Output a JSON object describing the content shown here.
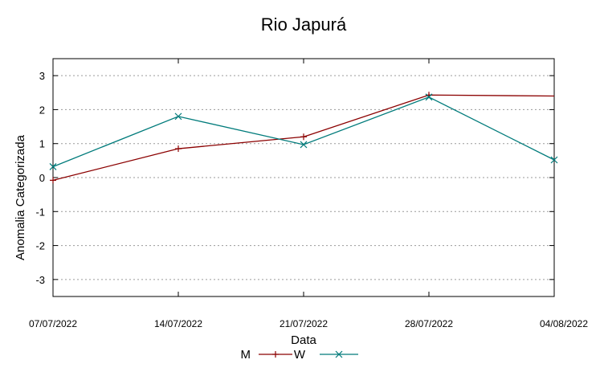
{
  "chart_data": {
    "type": "line",
    "title": "Rio Japurá",
    "xlabel": "Data",
    "ylabel": "Anomalia Categorizada",
    "x_ticks": [
      "07/07/2022",
      "14/07/2022",
      "21/07/2022",
      "28/07/2022",
      "04/08/2022"
    ],
    "x_range": [
      "07/07/2022",
      "04/08/2022"
    ],
    "ylim": [
      -3.5,
      3.5
    ],
    "y_ticks": [
      -3,
      -2,
      -1,
      0,
      1,
      2,
      3
    ],
    "grid": "horizontal-dotted",
    "legend_position": "bottom-center",
    "series": [
      {
        "name": "M",
        "color": "#8b0000",
        "marker": "plus",
        "points": [
          {
            "x": "07/07/2022",
            "y": -0.08
          },
          {
            "x": "14/07/2022",
            "y": 0.85
          },
          {
            "x": "21/07/2022",
            "y": 1.2
          },
          {
            "x": "28/07/2022",
            "y": 2.43
          },
          {
            "x": "04/08/2022",
            "y": 2.4
          }
        ],
        "marked_points": [
          "07/07/2022",
          "14/07/2022",
          "21/07/2022",
          "28/07/2022"
        ]
      },
      {
        "name": "W",
        "color": "#007b7b",
        "marker": "x",
        "points": [
          {
            "x": "07/07/2022",
            "y": 0.32
          },
          {
            "x": "14/07/2022",
            "y": 1.8
          },
          {
            "x": "21/07/2022",
            "y": 0.97
          },
          {
            "x": "28/07/2022",
            "y": 2.37
          },
          {
            "x": "04/08/2022",
            "y": 0.52
          }
        ],
        "marked_points": [
          "07/07/2022",
          "14/07/2022",
          "21/07/2022",
          "28/07/2022",
          "04/08/2022"
        ]
      }
    ]
  }
}
